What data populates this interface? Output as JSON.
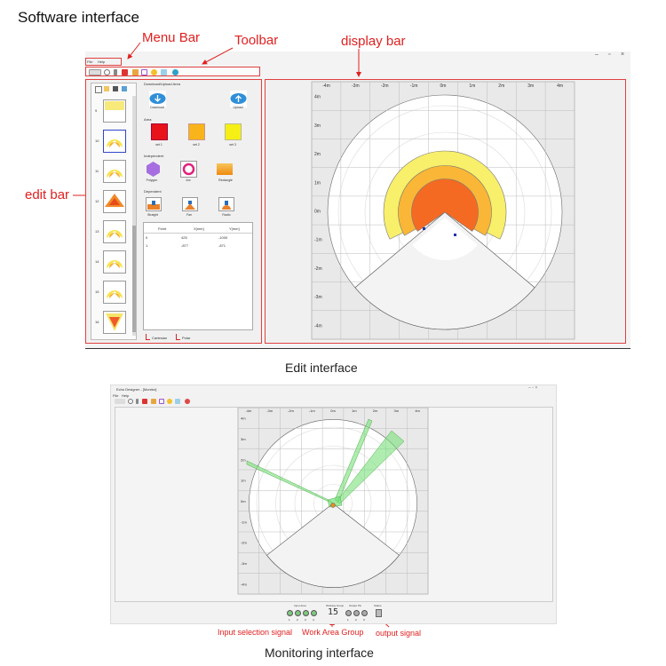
{
  "title": "Software interface",
  "annotations": {
    "menu_bar": "Menu Bar",
    "toolbar": "Toolbar",
    "display_bar": "display bar",
    "edit_bar": "edit bar",
    "input_signal": "Input selection signal",
    "work_area_group": "Work Area Group",
    "output_signal": "output signal"
  },
  "captions": {
    "edit": "Edit interface",
    "monitor": "Monitoring interface"
  },
  "edit_window": {
    "menu": [
      "File",
      "Help"
    ],
    "window_controls": [
      "–",
      "▫",
      "×"
    ],
    "list_numbers": [
      "9",
      "10",
      "11",
      "12",
      "13",
      "14",
      "15",
      "16"
    ],
    "panel": {
      "download_upload_header": "Download/Upload Area",
      "download_label": "Download",
      "upload_label": "Upload",
      "area_header": "Area",
      "area_buttons": [
        "set 1",
        "set 2",
        "set 3"
      ],
      "independent_header": "Independent",
      "independent_buttons": [
        "Polygon",
        "Arc",
        "Rectangle"
      ],
      "dependent_header": "Dependent",
      "dependent_buttons": [
        "Straight",
        "Fan",
        "Radio"
      ],
      "table_headers": [
        "Point",
        "X[mm]",
        "Y[mm]"
      ],
      "table_rows": [
        [
          "0",
          "425",
          "-1000"
        ],
        [
          "1",
          "-877",
          "-871"
        ]
      ],
      "tabs": [
        "Cartesian",
        "Polar"
      ]
    },
    "x_ticks": [
      "-4m",
      "-3m",
      "-2m",
      "-1m",
      "0m",
      "1m",
      "2m",
      "3m",
      "4m"
    ],
    "y_ticks": [
      "4m",
      "3m",
      "2m",
      "1m",
      "0m",
      "-1m",
      "-2m",
      "-3m",
      "-4m"
    ],
    "zone_colors": {
      "warning2": "#f8ef6a",
      "warning1": "#f9b637",
      "protect": "#f56a23"
    }
  },
  "monitor_window": {
    "title": "Echo Designer - [Monitor]",
    "menu": [
      "File",
      "Help"
    ],
    "x_ticks": [
      "-4m",
      "-3m",
      "-2m",
      "-1m",
      "0m",
      "1m",
      "2m",
      "3m",
      "4m"
    ],
    "y_ticks": [
      "4m",
      "3m",
      "2m",
      "1m",
      "0m",
      "-1m",
      "-2m",
      "-3m",
      "-4m"
    ],
    "status_labels": [
      "Input Area",
      "Working Group",
      "Output Pin",
      "Status"
    ],
    "input_numbers": [
      "1",
      "2",
      "3",
      "4"
    ],
    "output_numbers": [
      "1",
      "2",
      "3"
    ],
    "group_value": "15",
    "beam_color": "#79e07a"
  }
}
